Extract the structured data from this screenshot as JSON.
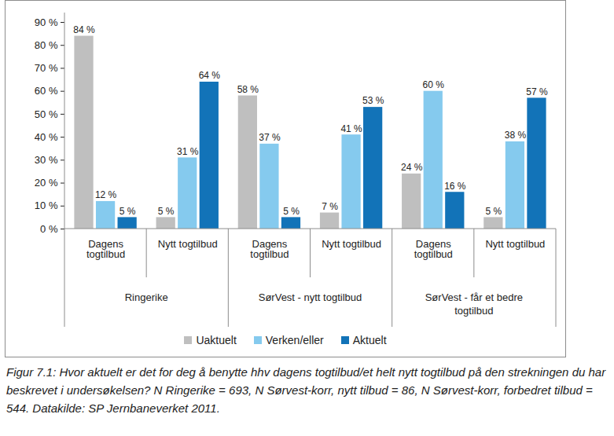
{
  "chart_data": {
    "type": "bar",
    "caption": "Figur 7.1: Hvor aktuelt er det for deg å benytte hhv dagens togtilbud/et helt nytt togtilbud på den strekningen du har beskrevet i undersøkelsen? N Ringerike = 693, N Sørvest-korr, nytt tilbud = 86, N Sørvest-korr, forbedret tilbud = 544. Datakilde: SP Jernbaneverket 2011.",
    "categories": [
      "Dagens togtilbud",
      "Nytt togtilbud",
      "Dagens togtilbud",
      "Nytt togtilbud",
      "Dagens togtilbud",
      "Nytt togtilbud"
    ],
    "groups": [
      "Ringerike",
      "Ringerike",
      "SørVest - nytt togtilbud",
      "SørVest - nytt togtilbud",
      "SørVest - får et bedre togtilbud",
      "SørVest - får et bedre togtilbud"
    ],
    "series": [
      {
        "name": "Uaktuelt",
        "color": "#bfbfbf",
        "values": [
          84,
          5,
          58,
          7,
          24,
          5
        ],
        "value_labels": [
          "84 %",
          "5 %",
          "58 %",
          "7 %",
          "24 %",
          "5 %"
        ]
      },
      {
        "name": "Verken/eller",
        "color": "#85caee",
        "values": [
          12,
          31,
          37,
          41,
          60,
          38
        ],
        "value_labels": [
          "12 %",
          "31 %",
          "37 %",
          "41 %",
          "60 %",
          "38 %"
        ]
      },
      {
        "name": "Aktuelt",
        "color": "#1273b8",
        "values": [
          5,
          64,
          5,
          53,
          16,
          57
        ],
        "value_labels": [
          "5 %",
          "64 %",
          "5 %",
          "53 %",
          "16 %",
          "57 %"
        ]
      }
    ],
    "ylim": [
      0,
      90
    ],
    "yticks": [
      {
        "value": 0,
        "label": "0 %"
      },
      {
        "value": 10,
        "label": "10 %"
      },
      {
        "value": 20,
        "label": "20 %"
      },
      {
        "value": 30,
        "label": "30 %"
      },
      {
        "value": 40,
        "label": "40 %"
      },
      {
        "value": 50,
        "label": "50 %"
      },
      {
        "value": 60,
        "label": "60 %"
      },
      {
        "value": 70,
        "label": "70 %"
      },
      {
        "value": 80,
        "label": "80 %"
      },
      {
        "value": 90,
        "label": "90 %"
      }
    ],
    "grid": false,
    "data_labels": true,
    "legend": "bottom"
  }
}
